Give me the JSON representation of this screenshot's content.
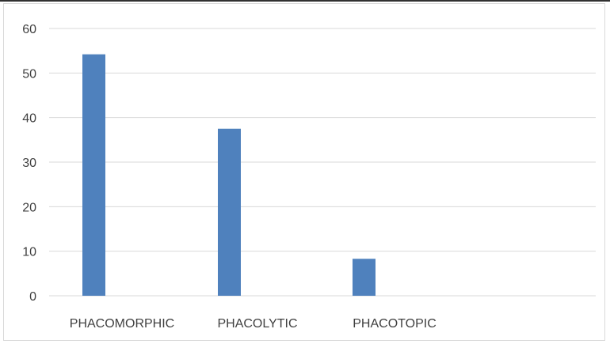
{
  "chart_data": {
    "type": "bar",
    "categories": [
      "PHACOMORPHIC",
      "PHACOLYTIC",
      "PHACOTOPIC"
    ],
    "values": [
      54.2,
      37.5,
      8.3
    ],
    "ylim": [
      0,
      60
    ],
    "yticks": [
      0,
      10,
      20,
      30,
      40,
      50,
      60
    ],
    "grid": true,
    "bar_color": "#4f81bd",
    "title": "",
    "xlabel": "",
    "ylabel": ""
  }
}
